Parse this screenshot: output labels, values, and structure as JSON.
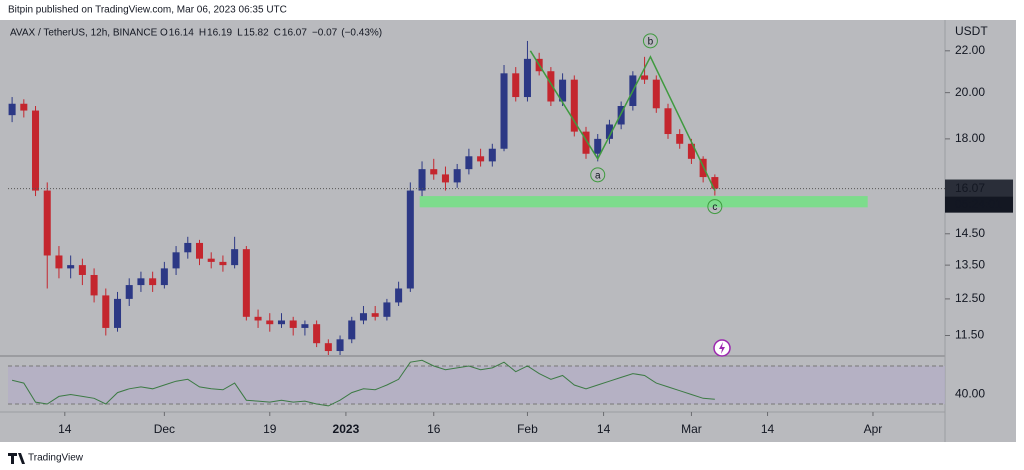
{
  "header": {
    "published": "Bitpin published on TradingView.com, Mar 06, 2023 06:35 UTC",
    "symbol": "AVAX / TetherUS, 12h, BINANCE",
    "ohlc_letters": [
      "O",
      "H",
      "L",
      "C"
    ],
    "ohlc": [
      16.14,
      16.19,
      15.82,
      16.07
    ],
    "change": {
      "value": -0.07,
      "label": "−0.07"
    },
    "change_pct": {
      "value": -0.43,
      "label": "(−0.43%)"
    }
  },
  "footer": {
    "brand": "TradingView"
  },
  "chart_data": [
    {
      "type": "candlestick",
      "unit": "USDT",
      "log": true,
      "up_color": "#2c3885",
      "down_color": "#c4262e",
      "x": [
        -9,
        -7,
        -5,
        -3,
        -1,
        1,
        3,
        5,
        7,
        9,
        11,
        13,
        15,
        17,
        19,
        21,
        23,
        25,
        27,
        29,
        31,
        33,
        35,
        37,
        39,
        41,
        43,
        45,
        47,
        49,
        51,
        53,
        55,
        57,
        59,
        61,
        63,
        65,
        67,
        69,
        71,
        73,
        75,
        77,
        79,
        81,
        83,
        85,
        87,
        89,
        91,
        93,
        95,
        97,
        99,
        101,
        103,
        105,
        107,
        109,
        111
      ],
      "open": [
        19.0,
        19.5,
        19.2,
        16.0,
        13.8,
        13.4,
        13.5,
        13.2,
        12.6,
        11.7,
        12.5,
        12.9,
        13.1,
        12.9,
        13.4,
        13.9,
        14.2,
        13.7,
        13.6,
        13.5,
        14.0,
        12.0,
        11.9,
        11.8,
        11.9,
        11.7,
        11.8,
        11.3,
        11.1,
        11.4,
        11.9,
        12.1,
        12.0,
        12.4,
        12.8,
        16.0,
        16.8,
        16.6,
        16.3,
        16.8,
        17.3,
        17.1,
        17.6,
        20.9,
        19.8,
        21.6,
        21.0,
        19.6,
        20.6,
        18.3,
        17.4,
        18.0,
        18.6,
        19.4,
        20.8,
        20.6,
        19.3,
        18.2,
        17.8,
        17.2,
        16.5
      ],
      "high": [
        19.8,
        19.7,
        19.4,
        16.3,
        14.1,
        13.8,
        13.7,
        13.4,
        12.8,
        12.7,
        13.1,
        13.3,
        13.3,
        13.6,
        14.1,
        14.4,
        14.3,
        13.9,
        13.8,
        14.4,
        14.1,
        12.2,
        12.1,
        12.1,
        12.0,
        11.9,
        11.9,
        11.4,
        11.5,
        12.0,
        12.3,
        12.3,
        12.5,
        13.0,
        16.3,
        17.1,
        17.2,
        16.9,
        17.0,
        17.6,
        17.6,
        17.8,
        21.3,
        21.2,
        22.5,
        21.9,
        21.2,
        20.9,
        20.8,
        18.5,
        18.2,
        18.8,
        19.6,
        21.0,
        21.7,
        20.8,
        19.5,
        18.4,
        18.0,
        17.3,
        16.6
      ],
      "low": [
        18.7,
        18.9,
        15.8,
        12.8,
        13.1,
        13.1,
        12.9,
        12.4,
        11.5,
        11.6,
        12.3,
        12.7,
        12.7,
        12.8,
        13.2,
        13.7,
        13.5,
        13.4,
        13.3,
        13.4,
        11.9,
        11.7,
        11.6,
        11.7,
        11.5,
        11.5,
        11.2,
        11.0,
        11.0,
        11.3,
        11.8,
        11.9,
        11.9,
        12.3,
        12.7,
        15.8,
        16.4,
        16.0,
        16.1,
        16.6,
        16.9,
        16.9,
        17.5,
        19.6,
        19.6,
        20.8,
        19.4,
        19.4,
        18.1,
        17.2,
        17.1,
        17.8,
        18.4,
        19.2,
        20.4,
        19.1,
        18.0,
        17.6,
        17.0,
        16.3,
        15.82
      ],
      "close": [
        19.5,
        19.2,
        16.0,
        13.8,
        13.4,
        13.5,
        13.2,
        12.6,
        11.7,
        12.5,
        12.9,
        13.1,
        12.9,
        13.4,
        13.9,
        14.2,
        13.7,
        13.6,
        13.5,
        14.0,
        12.0,
        11.9,
        11.8,
        11.9,
        11.7,
        11.8,
        11.3,
        11.1,
        11.4,
        11.9,
        12.1,
        12.0,
        12.4,
        12.8,
        16.0,
        16.8,
        16.6,
        16.3,
        16.8,
        17.3,
        17.1,
        17.6,
        20.9,
        19.8,
        21.6,
        21.0,
        19.6,
        20.6,
        18.3,
        17.4,
        18.0,
        18.6,
        19.4,
        20.8,
        20.6,
        19.3,
        18.2,
        17.8,
        17.2,
        16.5,
        16.07
      ],
      "xlim": [
        -9.7,
        150.3
      ],
      "xticks": [
        {
          "value": 0,
          "label": "14"
        },
        {
          "value": 17,
          "label": "Dec"
        },
        {
          "value": 35,
          "label": "19"
        },
        {
          "value": 48,
          "label": "2023"
        },
        {
          "value": 63,
          "label": "16"
        },
        {
          "value": 79,
          "label": "Feb"
        },
        {
          "value": 92,
          "label": "14"
        },
        {
          "value": 107,
          "label": "Mar"
        },
        {
          "value": 120,
          "label": "14"
        },
        {
          "value": 138,
          "label": "Apr"
        }
      ],
      "ylim": [
        11.0,
        23.6
      ],
      "yticks": [
        {
          "value": 22,
          "label": "22.00"
        },
        {
          "value": 20,
          "label": "20.00"
        },
        {
          "value": 18,
          "label": "18.00"
        },
        {
          "value": 14.5,
          "label": "14.50"
        },
        {
          "value": 13.5,
          "label": "13.50"
        },
        {
          "value": 12.5,
          "label": "12.50"
        },
        {
          "value": 11.5,
          "label": "11.50"
        }
      ],
      "last_price": 16.07,
      "countdown": "05:24:01",
      "zone": {
        "x": [
          60.6,
          137.1
        ],
        "y": [
          15.4,
          15.8
        ],
        "color": "#7ddc8c"
      },
      "wave": {
        "color": "#3f9a3f",
        "x": [
          79.5,
          91,
          100,
          111
        ],
        "y": [
          22.0,
          17.2,
          21.7,
          16.0
        ],
        "labels": [
          null,
          "a",
          "b",
          "c"
        ]
      }
    },
    {
      "type": "line",
      "color": "#3c7a44",
      "x": [
        -9,
        -7,
        -5,
        -3,
        -1,
        1,
        3,
        5,
        7,
        9,
        11,
        13,
        15,
        17,
        19,
        21,
        23,
        25,
        27,
        29,
        31,
        33,
        35,
        37,
        39,
        41,
        43,
        45,
        47,
        49,
        51,
        53,
        55,
        57,
        59,
        61,
        63,
        65,
        67,
        69,
        71,
        73,
        75,
        77,
        79,
        81,
        83,
        85,
        87,
        89,
        91,
        93,
        95,
        97,
        99,
        101,
        103,
        105,
        107,
        109,
        111
      ],
      "values": [
        55,
        52,
        32,
        30,
        38,
        40,
        38,
        36,
        30,
        42,
        46,
        48,
        46,
        50,
        54,
        56,
        48,
        46,
        45,
        52,
        34,
        33,
        32,
        34,
        32,
        33,
        30,
        28,
        34,
        42,
        46,
        45,
        50,
        56,
        74,
        76,
        70,
        66,
        68,
        70,
        66,
        68,
        74,
        64,
        70,
        62,
        56,
        60,
        50,
        46,
        50,
        54,
        58,
        62,
        60,
        52,
        48,
        44,
        40,
        36,
        35
      ],
      "xlim": [
        -9.7,
        150.3
      ],
      "ylim": [
        23.7,
        78.4
      ],
      "yticks": [
        {
          "value": 40,
          "label": "40.00"
        }
      ],
      "bands": [
        30,
        70
      ]
    }
  ]
}
